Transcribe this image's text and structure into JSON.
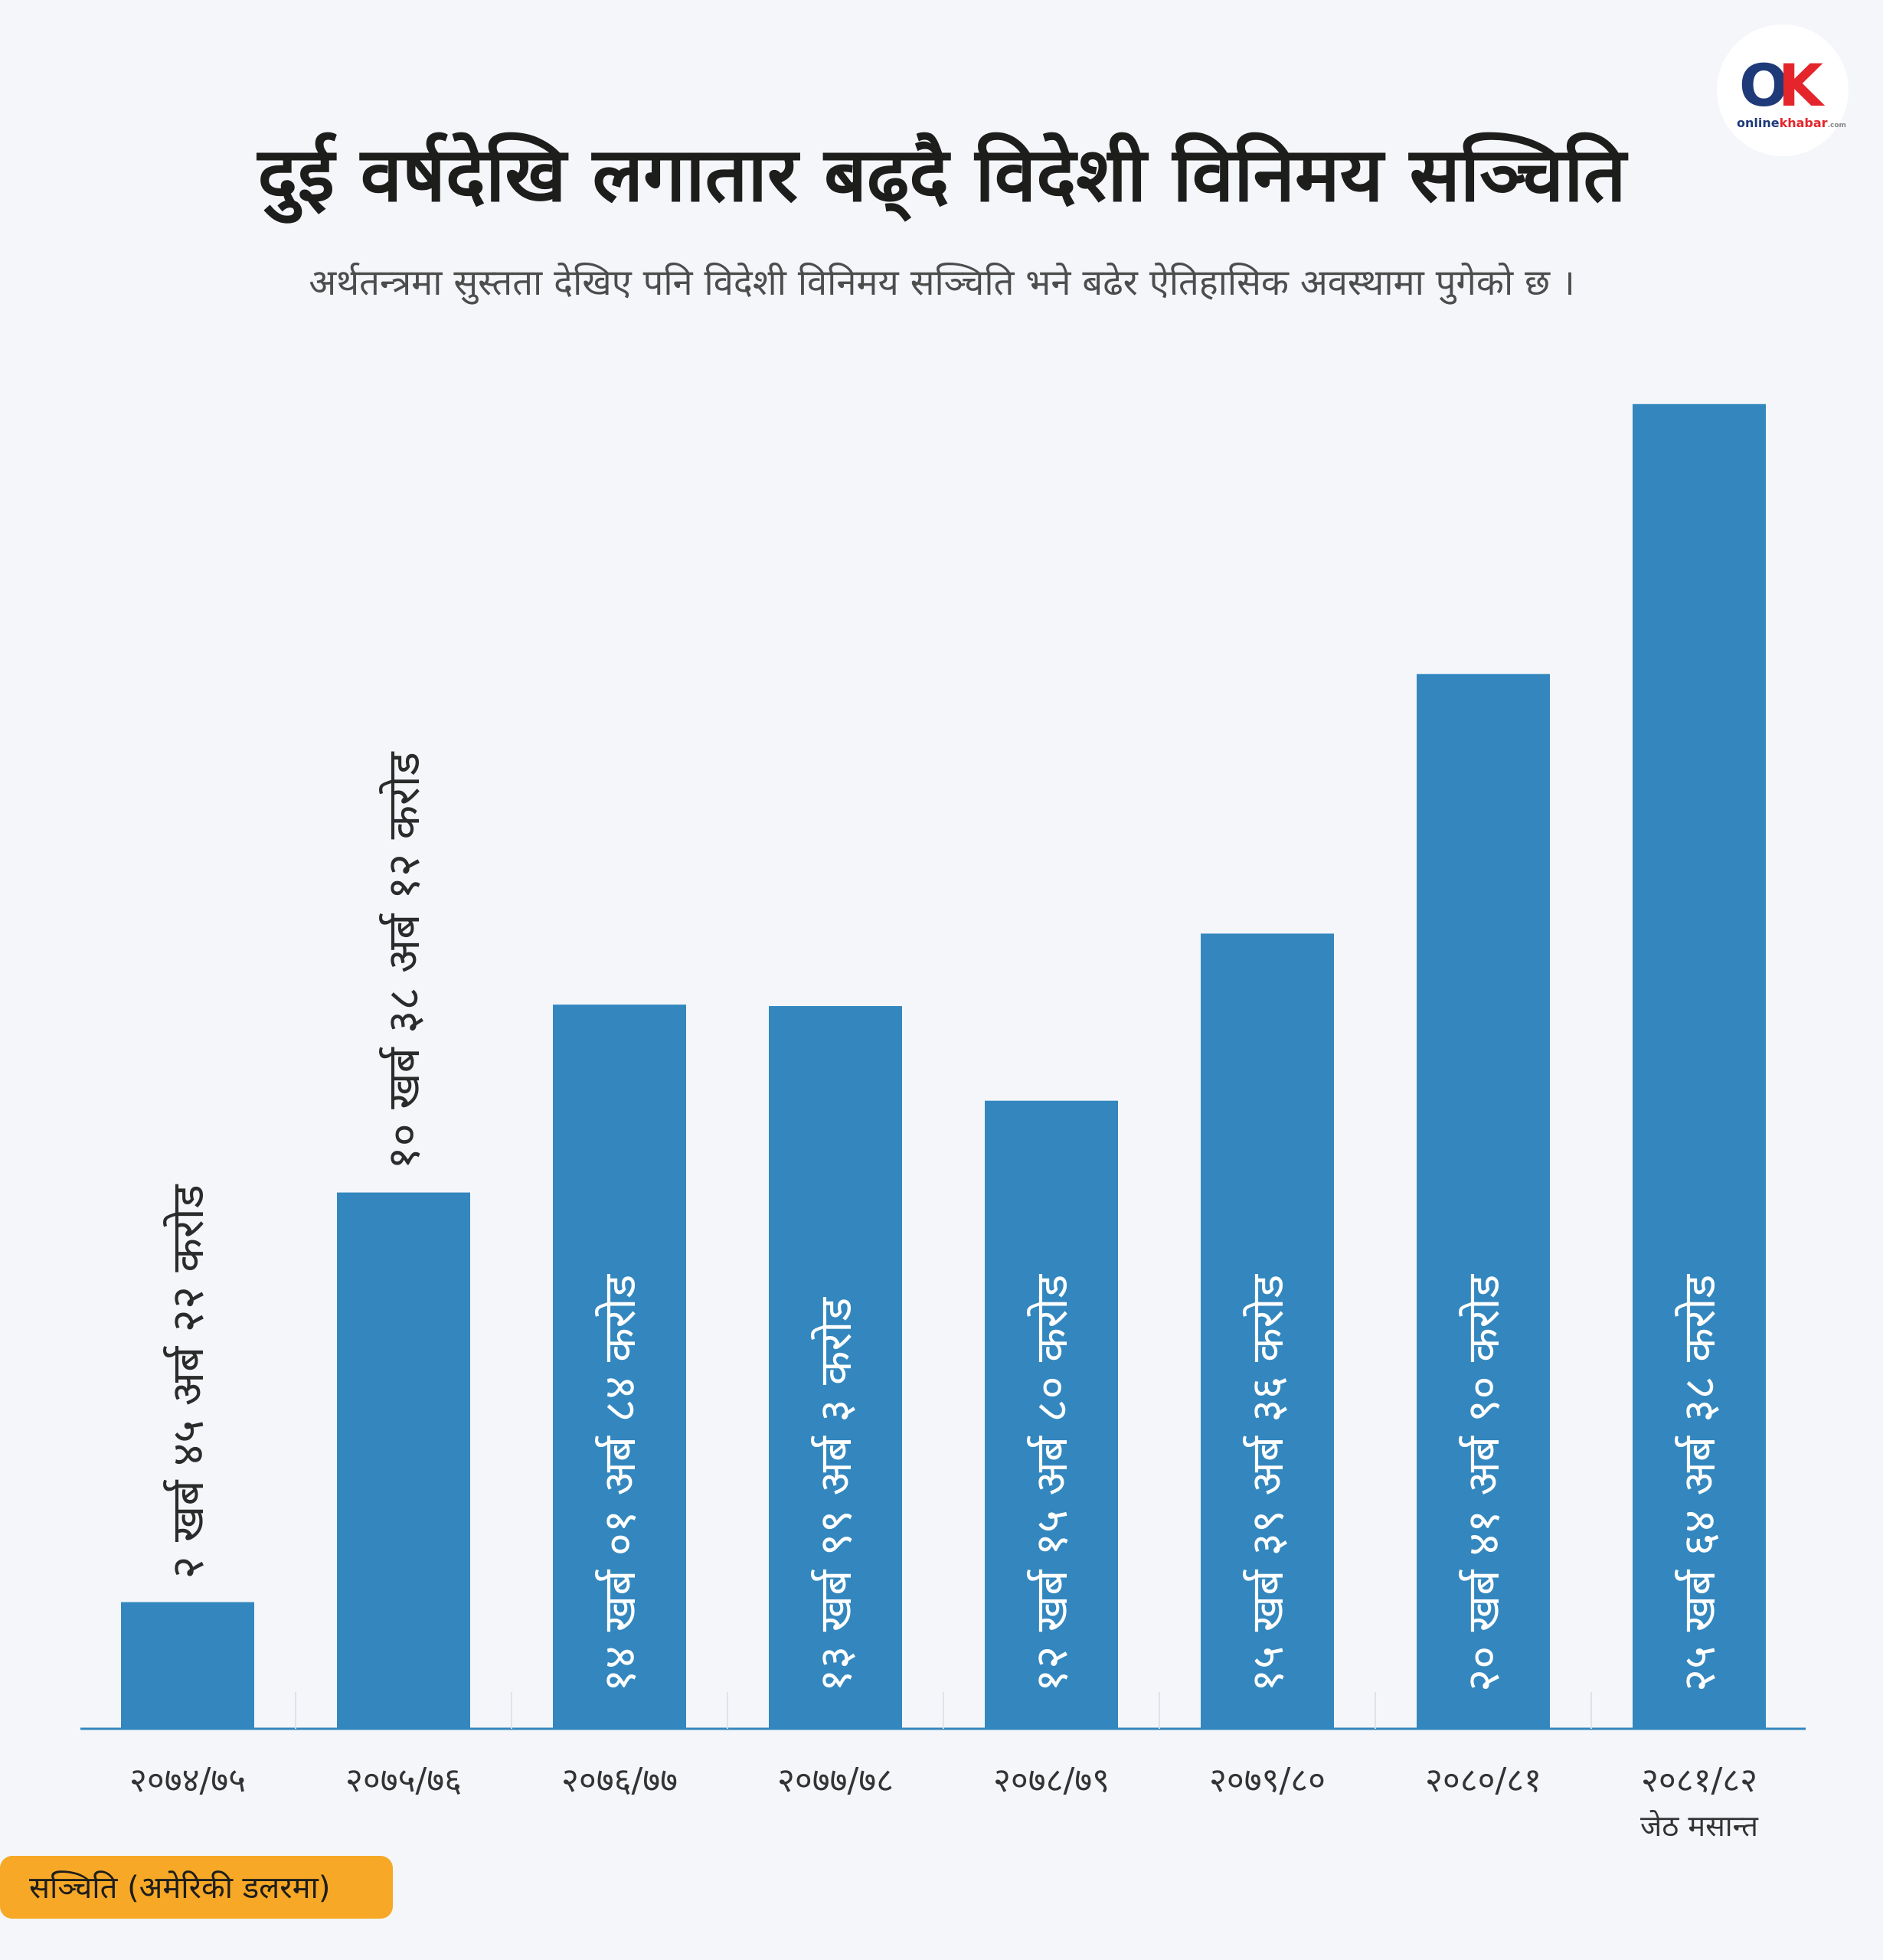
{
  "header": {
    "title": "दुई वर्षदेखि लगातार बढ्दै विदेशी विनिमय सञ्चिति",
    "subtitle": "अर्थतन्त्रमा सुस्तता देखिए पनि विदेशी विनिमय सञ्चिति भने बढेर ऐतिहासिक अवस्थामा पुगेको छ ।"
  },
  "logo": {
    "mark_o": "O",
    "mark_k": "K",
    "sub_online": "online",
    "sub_khabar": "khabar",
    "sub_suffix": ".com"
  },
  "legend": {
    "label": "सञ्चिति (अमेरिकी डलरमा)"
  },
  "colors": {
    "background": "#f4f6fa",
    "bar": "#3387be",
    "legend_box": "#f6a826",
    "axis": "#3387be",
    "logo_o": "#1e3a78",
    "logo_k": "#e4262c"
  },
  "chart_data": {
    "type": "bar",
    "categories": [
      "२०७४/७५",
      "२०७५/७६",
      "२०७६/७७",
      "२०७७/७८",
      "२०७८/७९",
      "२०७९/८०",
      "२०८०/८१",
      "२०८१/८२"
    ],
    "category_notes": [
      "",
      "",
      "",
      "",
      "",
      "",
      "",
      "जेठ मसान्त"
    ],
    "values": [
      2.4522,
      10.3812,
      14.0184,
      13.9903,
      12.158,
      15.3936,
      20.419,
      25.6438
    ],
    "value_unit": "खर्ब",
    "data_labels": [
      "२ खर्ब ४५ अर्ब २२ करोड",
      "१० खर्ब ३८ अर्ब १२ करोड",
      "१४ खर्ब ०१ अर्ब ८४ करोड",
      "१३ खर्ब ९९ अर्ब ३ करोड",
      "१२ खर्ब १५ अर्ब ८० करोड",
      "१५ खर्ब ३९ अर्ब ३६ करोड",
      "२० खर्ब ४१ अर्ब ९० करोड",
      "२५ खर्ब ६४ अर्ब ३८ करोड"
    ],
    "label_position": [
      "outside",
      "outside",
      "inside",
      "inside",
      "inside",
      "inside",
      "inside",
      "inside"
    ],
    "ylim": [
      0,
      26.5
    ],
    "grid": false,
    "legend_position": "bottom-left"
  }
}
